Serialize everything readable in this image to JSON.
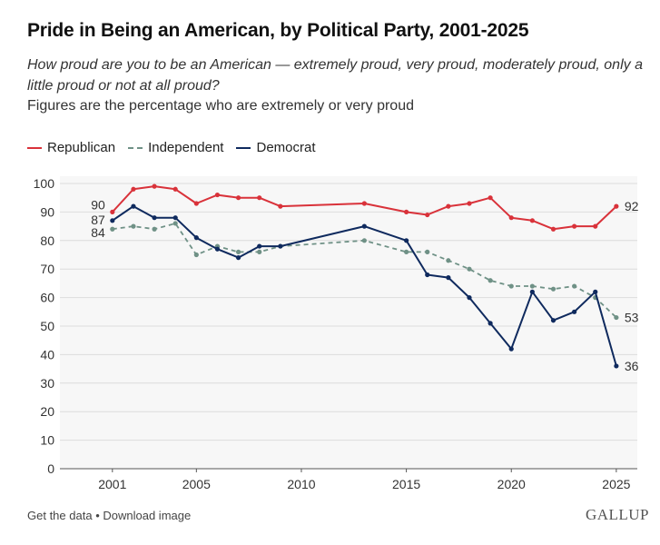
{
  "title": "Pride in Being an American, by Political Party, 2001-2025",
  "subtitle": "How proud are you to be an American — extremely proud, very proud, moderately proud, only a little proud or not at all proud?",
  "note": "Figures are the percentage who are extremely or very proud",
  "footer": {
    "get_data": "Get the data",
    "separator": "•",
    "download": "Download image",
    "brand": "GALLUP"
  },
  "chart_data": {
    "type": "line",
    "xlim": [
      1998.5,
      2026
    ],
    "ylim": [
      0,
      100
    ],
    "x_ticks": [
      2001,
      2005,
      2010,
      2015,
      2020,
      2025
    ],
    "y_ticks": [
      0,
      10,
      20,
      30,
      40,
      50,
      60,
      70,
      80,
      90,
      100
    ],
    "grid": true,
    "legend_position": "top-left",
    "series": [
      {
        "name": "Republican",
        "color": "#d9323a",
        "dash": "solid",
        "x": [
          2001,
          2002,
          2003,
          2004,
          2005,
          2006,
          2007,
          2008,
          2009,
          2013,
          2015,
          2016,
          2017,
          2018,
          2019,
          2020,
          2021,
          2022,
          2023,
          2024,
          2025
        ],
        "y": [
          90,
          98,
          99,
          98,
          93,
          96,
          95,
          95,
          92,
          93,
          90,
          89,
          92,
          93,
          95,
          88,
          87,
          84,
          85,
          85,
          92
        ],
        "start_label": "90",
        "end_label": "92"
      },
      {
        "name": "Independent",
        "color": "#6f9186",
        "dash": "dashed",
        "x": [
          2001,
          2002,
          2003,
          2004,
          2005,
          2006,
          2007,
          2008,
          2009,
          2013,
          2015,
          2016,
          2017,
          2018,
          2019,
          2020,
          2021,
          2022,
          2023,
          2024,
          2025
        ],
        "y": [
          84,
          85,
          84,
          86,
          75,
          78,
          76,
          76,
          78,
          80,
          76,
          76,
          73,
          70,
          66,
          64,
          64,
          63,
          64,
          60,
          53
        ],
        "start_label": "84",
        "end_label": "53"
      },
      {
        "name": "Democrat",
        "color": "#0f2a5e",
        "dash": "solid",
        "x": [
          2001,
          2002,
          2003,
          2004,
          2005,
          2006,
          2007,
          2008,
          2009,
          2013,
          2015,
          2016,
          2017,
          2018,
          2019,
          2020,
          2021,
          2022,
          2023,
          2024,
          2025
        ],
        "y": [
          87,
          92,
          88,
          88,
          81,
          77,
          74,
          78,
          78,
          85,
          80,
          68,
          67,
          60,
          51,
          42,
          62,
          52,
          55,
          62,
          36
        ],
        "start_label": "87",
        "end_label": "36"
      }
    ]
  }
}
